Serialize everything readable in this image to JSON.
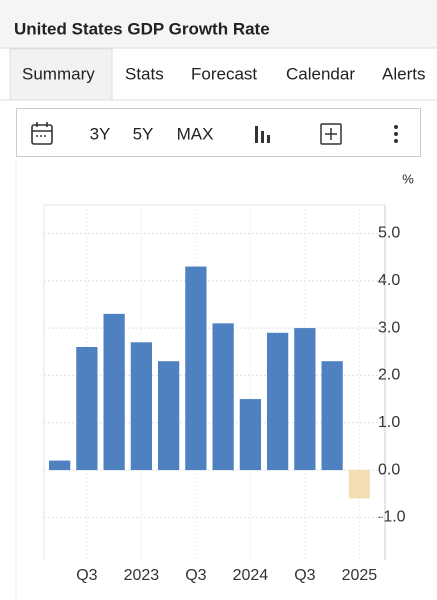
{
  "header": {
    "title": "United States GDP Growth Rate"
  },
  "tabs": [
    "Summary",
    "Stats",
    "Forecast",
    "Calendar",
    "Alerts"
  ],
  "toolbar": [
    "3Y",
    "5Y",
    "MAX"
  ],
  "chart_data": {
    "type": "bar",
    "y_label": "%",
    "categories": [
      null,
      "Q3",
      null,
      "2023",
      null,
      "Q3",
      null,
      "2024",
      null,
      "Q3",
      null,
      "2025"
    ],
    "values": [
      0.2,
      2.6,
      3.3,
      2.7,
      2.3,
      4.3,
      3.1,
      1.5,
      2.9,
      3.0,
      2.3,
      -0.6
    ],
    "colors": [
      "#4f81c1",
      "#4f81c1",
      "#4f81c1",
      "#4f81c1",
      "#4f81c1",
      "#4f81c1",
      "#4f81c1",
      "#4f81c1",
      "#4f81c1",
      "#4f81c1",
      "#4f81c1",
      "#f5deb3"
    ],
    "ylim": [
      -1.9,
      5.6
    ],
    "yticks": [
      {
        "value": -1,
        "label": "-1.0"
      },
      {
        "value": 0,
        "label": "0.0"
      },
      {
        "value": 1,
        "label": "1.0"
      },
      {
        "value": 2,
        "label": "2.0"
      },
      {
        "value": 3,
        "label": "3.0"
      },
      {
        "value": 4,
        "label": "4.0"
      },
      {
        "value": 5,
        "label": "5.0"
      }
    ],
    "grid": true
  }
}
